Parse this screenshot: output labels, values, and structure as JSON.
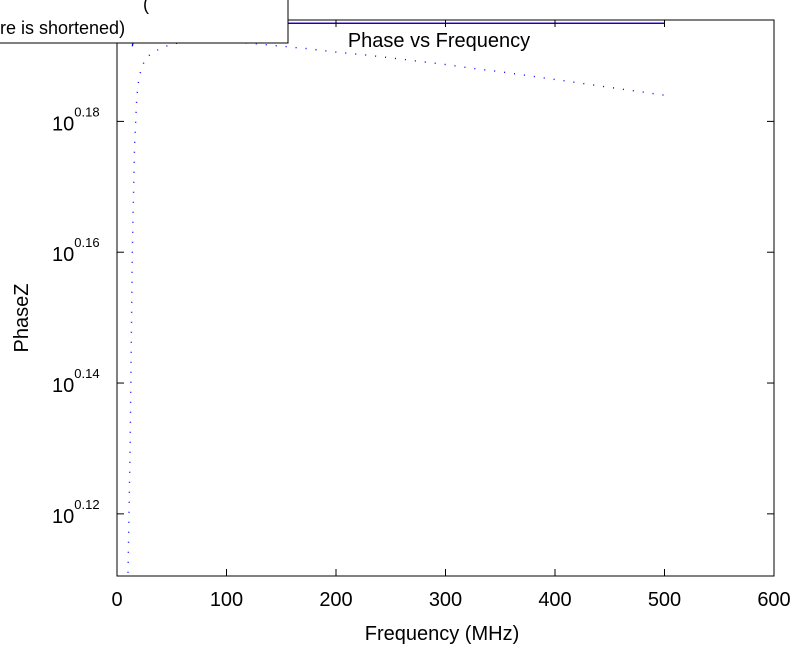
{
  "chart_data": {
    "type": "line",
    "title": "Phase vs Frequency",
    "xlabel": "Frequency (MHz)",
    "ylabel": "PhaseZ",
    "xlim": [
      0,
      600
    ],
    "ylim": [
      0.1105,
      0.1955
    ],
    "yscale": "log10 (ticks printed as exponents of 10)",
    "x_ticks": [
      {
        "value": 0,
        "label": "0"
      },
      {
        "value": 100,
        "label": "100"
      },
      {
        "value": 200,
        "label": "200"
      },
      {
        "value": 300,
        "label": "300"
      },
      {
        "value": 400,
        "label": "400"
      },
      {
        "value": 500,
        "label": "500"
      },
      {
        "value": 600,
        "label": "600"
      }
    ],
    "y_ticks": [
      {
        "value": 0.12,
        "base": "10",
        "exponent": "0.12"
      },
      {
        "value": 0.14,
        "base": "10",
        "exponent": "0.14"
      },
      {
        "value": 0.16,
        "base": "10",
        "exponent": "0.16"
      },
      {
        "value": 0.18,
        "base": "10",
        "exponent": "0.18"
      }
    ],
    "grid": false,
    "legend": {
      "placement": "top-left (partially cut off)",
      "lines": [
        "(",
        "re is shortened)"
      ]
    },
    "series": [
      {
        "style": "solid",
        "color": "#ff0000",
        "x": [
          14,
          18,
          22,
          26,
          30,
          40,
          60,
          100,
          200,
          300,
          400,
          500
        ],
        "y": [
          0.1948,
          0.1949,
          0.19495,
          0.195,
          0.195,
          0.195,
          0.195,
          0.195,
          0.195,
          0.195,
          0.195,
          0.195
        ]
      },
      {
        "style": "solid",
        "color": "#0000ff",
        "x": [
          14,
          16,
          18,
          20,
          22,
          25,
          30,
          35,
          40,
          60,
          100,
          200,
          300,
          400,
          500
        ],
        "y": [
          0.1915,
          0.1932,
          0.1941,
          0.1945,
          0.1947,
          0.1948,
          0.1949,
          0.195,
          0.195,
          0.195,
          0.195,
          0.195,
          0.195,
          0.195,
          0.195
        ]
      },
      {
        "style": "dotted",
        "color": "#0000ff",
        "x": [
          10,
          12,
          14,
          16,
          18,
          20,
          25,
          30,
          40,
          50,
          60,
          70,
          80,
          90,
          100,
          125,
          150,
          175,
          200,
          225,
          250,
          275,
          300,
          325,
          350,
          375,
          400,
          425,
          450,
          475,
          500
        ],
        "y": [
          0.111,
          0.13,
          0.16,
          0.176,
          0.1835,
          0.1868,
          0.1893,
          0.1902,
          0.1912,
          0.1918,
          0.1921,
          0.1922,
          0.1923,
          0.1922,
          0.1922,
          0.1919,
          0.1915,
          0.1911,
          0.1906,
          0.1902,
          0.1897,
          0.1892,
          0.1887,
          0.1881,
          0.1876,
          0.187,
          0.1864,
          0.1858,
          0.1852,
          0.1846,
          0.184
        ]
      }
    ]
  }
}
